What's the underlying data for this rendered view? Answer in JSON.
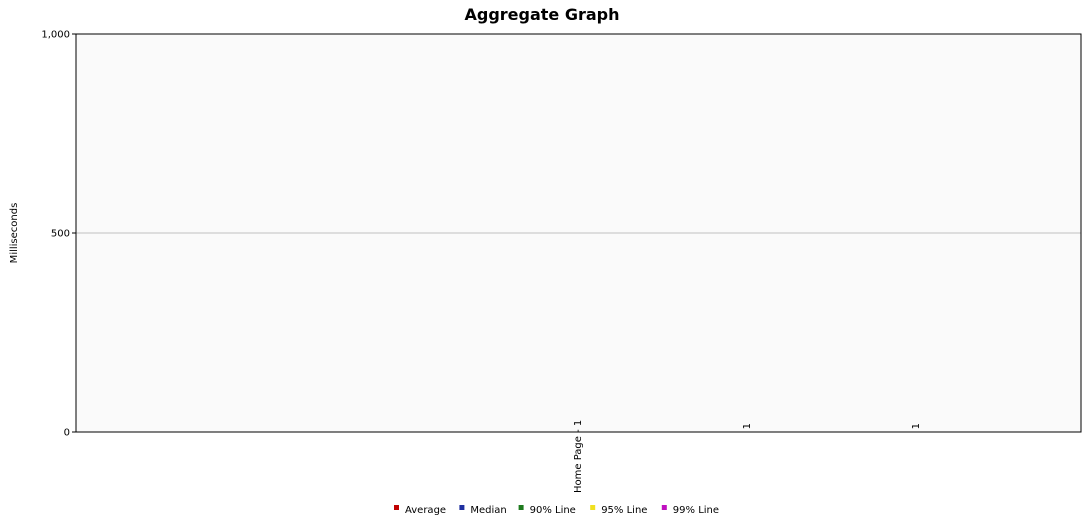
{
  "chart_data": {
    "type": "bar",
    "title": "Aggregate Graph",
    "xlabel": "",
    "ylabel": "Milliseconds",
    "ylim": [
      0,
      1000
    ],
    "yticks": [
      {
        "value": 0,
        "label": "0"
      },
      {
        "value": 500,
        "label": "500"
      },
      {
        "value": 1000,
        "label": "1,000"
      }
    ],
    "grid": true,
    "legend_position": "bottom",
    "categories": [
      "Home Page - 1",
      "1",
      "1"
    ],
    "series": [
      {
        "name": "Average",
        "color": "#c00000",
        "values": [
          0,
          0,
          0
        ]
      },
      {
        "name": "Median",
        "color": "#1f2fa0",
        "values": [
          0,
          0,
          0
        ]
      },
      {
        "name": "90% Line",
        "color": "#1e7a1e",
        "values": [
          0,
          0,
          0
        ]
      },
      {
        "name": "95% Line",
        "color": "#f0e020",
        "values": [
          0,
          0,
          0
        ]
      },
      {
        "name": "99% Line",
        "color": "#c010c0",
        "values": [
          0,
          0,
          0
        ]
      }
    ]
  }
}
